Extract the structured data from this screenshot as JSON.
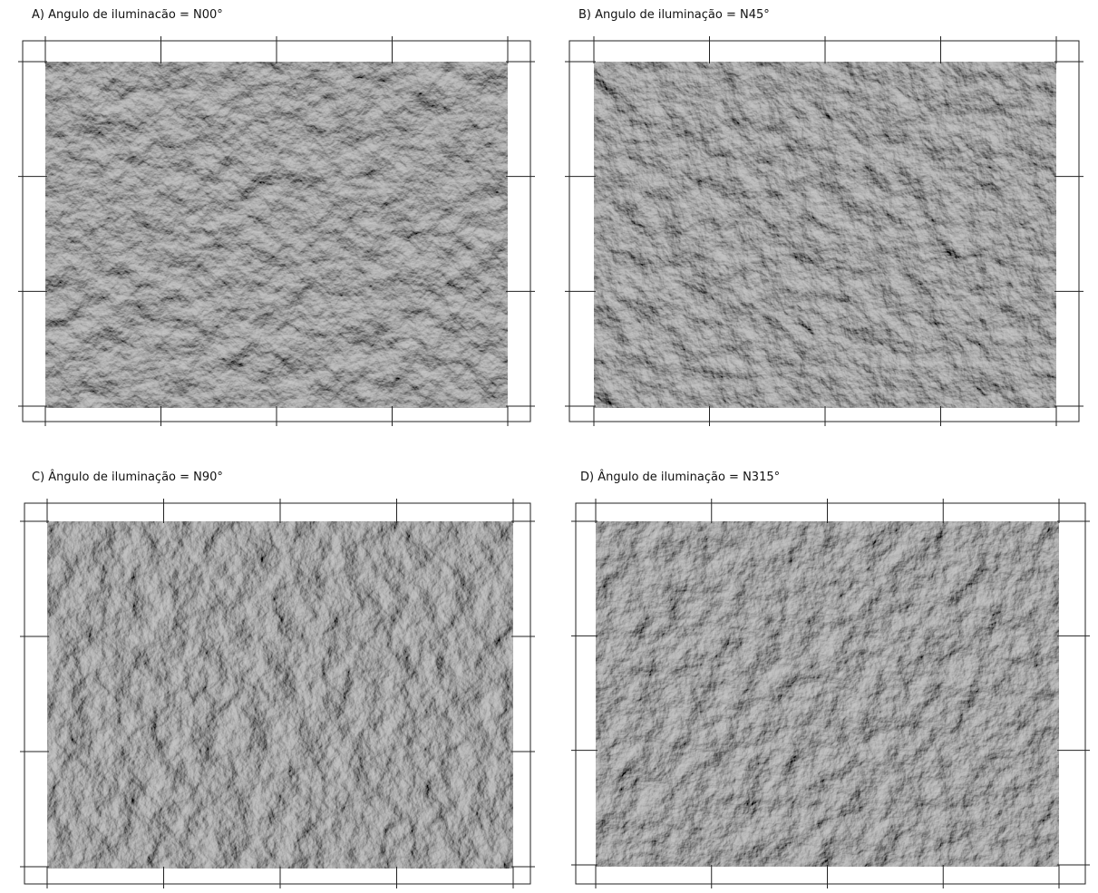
{
  "panels": [
    {
      "title": "A) Angulo de iluminacão = N00°"
    },
    {
      "title": "B) Angulo de iluminação = N45°"
    },
    {
      "title": "C) Ângulo de iluminação = N90°"
    },
    {
      "title": "D) Ângulo de iluminação = N315°"
    }
  ]
}
